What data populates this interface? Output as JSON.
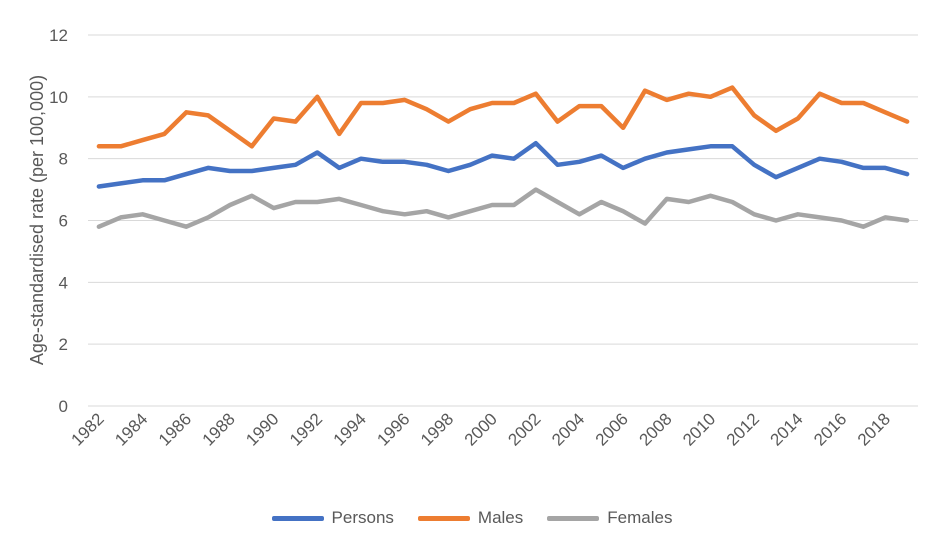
{
  "chart_data": {
    "type": "line",
    "title": "",
    "xlabel": "",
    "ylabel": "Age-standardised rate (per 100,000)",
    "ylim": [
      0,
      12
    ],
    "yticks": [
      0,
      2,
      4,
      6,
      8,
      10,
      12
    ],
    "grid": true,
    "legend_position": "bottom",
    "x": [
      1982,
      1983,
      1984,
      1985,
      1986,
      1987,
      1988,
      1989,
      1990,
      1991,
      1992,
      1993,
      1994,
      1995,
      1996,
      1997,
      1998,
      1999,
      2000,
      2001,
      2002,
      2003,
      2004,
      2005,
      2006,
      2007,
      2008,
      2009,
      2010,
      2011,
      2012,
      2013,
      2014,
      2015,
      2016,
      2017,
      2018,
      2019
    ],
    "xtick_labels": [
      "1982",
      "1984",
      "1986",
      "1988",
      "1990",
      "1992",
      "1994",
      "1996",
      "1998",
      "2000",
      "2002",
      "2004",
      "2006",
      "2008",
      "2010",
      "2012",
      "2014",
      "2016",
      "2018"
    ],
    "series": [
      {
        "name": "Persons",
        "color": "#4472C4",
        "values": [
          7.1,
          7.2,
          7.3,
          7.3,
          7.5,
          7.7,
          7.6,
          7.6,
          7.7,
          7.8,
          8.2,
          7.7,
          8.0,
          7.9,
          7.9,
          7.8,
          7.6,
          7.8,
          8.1,
          8.0,
          8.5,
          7.8,
          7.9,
          8.1,
          7.7,
          8.0,
          8.2,
          8.3,
          8.4,
          8.4,
          7.8,
          7.4,
          7.7,
          8.0,
          7.9,
          7.7,
          7.7,
          7.5
        ]
      },
      {
        "name": "Males",
        "color": "#ED7D31",
        "values": [
          8.4,
          8.4,
          8.6,
          8.8,
          9.5,
          9.4,
          8.9,
          8.4,
          9.3,
          9.2,
          10.0,
          8.8,
          9.8,
          9.8,
          9.9,
          9.6,
          9.2,
          9.6,
          9.8,
          9.8,
          10.1,
          9.2,
          9.7,
          9.7,
          9.0,
          10.2,
          9.9,
          10.1,
          10.0,
          10.3,
          9.4,
          8.9,
          9.3,
          10.1,
          9.8,
          9.8,
          9.5,
          9.2
        ]
      },
      {
        "name": "Females",
        "color": "#A5A5A5",
        "values": [
          5.8,
          6.1,
          6.2,
          6.0,
          5.8,
          6.1,
          6.5,
          6.8,
          6.4,
          6.6,
          6.6,
          6.7,
          6.5,
          6.3,
          6.2,
          6.3,
          6.1,
          6.3,
          6.5,
          6.5,
          7.0,
          6.6,
          6.2,
          6.6,
          6.3,
          5.9,
          6.7,
          6.6,
          6.8,
          6.6,
          6.2,
          6.0,
          6.2,
          6.1,
          6.0,
          5.8,
          6.1,
          6.0
        ]
      }
    ]
  }
}
